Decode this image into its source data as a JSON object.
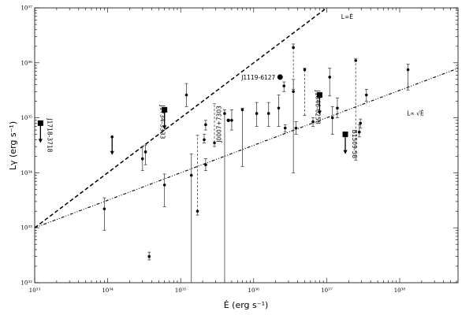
{
  "chart_data": {
    "type": "scatter",
    "title": "",
    "xlabel": "Ė (erg s⁻¹)",
    "ylabel": "Lγ (erg s⁻¹)",
    "x_scale": "log",
    "y_scale": "log",
    "xlim": [
      1e+33,
      6.3e+38
    ],
    "ylim": [
      1e+32,
      1e+37
    ],
    "x_ticks": [
      {
        "value": 1e+33,
        "label": "10³³"
      },
      {
        "value": 1e+34,
        "label": "10³⁴"
      },
      {
        "value": 1e+35,
        "label": "10³⁵"
      },
      {
        "value": 1e+36,
        "label": "10³⁶"
      },
      {
        "value": 1e+37,
        "label": "10³⁷"
      },
      {
        "value": 1e+38,
        "label": "10³⁸"
      }
    ],
    "y_ticks": [
      {
        "value": 1e+32,
        "label": "10³²"
      },
      {
        "value": 1e+33,
        "label": "10³³"
      },
      {
        "value": 1e+34,
        "label": "10³⁴"
      },
      {
        "value": 1e+35,
        "label": "10³⁵"
      },
      {
        "value": 1e+36,
        "label": "10³⁶"
      },
      {
        "value": 1e+37,
        "label": "10³⁷"
      }
    ],
    "grid": false,
    "reference_lines": [
      {
        "label": "L=Ė",
        "style": "dashed",
        "relation": "L = Ė",
        "label_at": [
          1.58e+37,
          6.3e+36
        ]
      },
      {
        "label": "L∝ √Ė",
        "style": "dash-dot",
        "relation": "L = 1e33 × (Ė/1e33)^0.5",
        "label_at": [
          1.26e+38,
          1.1e+35
        ]
      }
    ],
    "points": [
      {
        "x": 1.3e+38,
        "y": 7.5e+35,
        "lo": 3.2e+35,
        "hi": 9.5e+35
      },
      {
        "x": 3.5e+37,
        "y": 2.6e+35,
        "lo": 2e+35,
        "hi": 3.3e+35
      },
      {
        "x": 2.5e+37,
        "y": 1.1e+36,
        "lo": 1.7e+34,
        "hi": 1.2e+36,
        "dashed": true
      },
      {
        "x": 2.8e+37,
        "y": 5.5e+34,
        "lo": 4.5e+34,
        "hi": 7.5e+34
      },
      {
        "x": 2.9e+37,
        "y": 8e+34,
        "lo": 6.5e+34,
        "hi": 9.5e+34
      },
      {
        "x": 1.4e+37,
        "y": 1.5e+35,
        "lo": 1e+35,
        "hi": 2.3e+35
      },
      {
        "x": 1.1e+37,
        "y": 5.5e+35,
        "lo": 2.5e+35,
        "hi": 8e+35
      },
      {
        "x": 1.2e+37,
        "y": 1e+35,
        "lo": 5e+34,
        "hi": 1.6e+35
      },
      {
        "x": 6.5e+36,
        "y": 8.5e+34,
        "lo": 7e+34,
        "hi": 1e+35
      },
      {
        "x": 5e+36,
        "y": 7.5e+35,
        "lo": 1.1e+35,
        "hi": 8e+35,
        "dashed": true
      },
      {
        "x": 3.5e+36,
        "y": 1.9e+36,
        "lo": 3.3e+35,
        "hi": 2.2e+36,
        "dashed": true
      },
      {
        "x": 3.5e+36,
        "y": 3e+35,
        "lo": 1e+34,
        "hi": 5e+35
      },
      {
        "x": 3.8e+36,
        "y": 6.5e+34,
        "lo": 5e+34,
        "hi": 8.5e+34
      },
      {
        "x": 2.6e+36,
        "y": 3.8e+35,
        "lo": 3e+35,
        "hi": 4.5e+35
      },
      {
        "x": 2.7e+36,
        "y": 6.5e+34,
        "lo": 5.5e+34,
        "hi": 7.5e+34
      },
      {
        "x": 2.2e+36,
        "y": 1.5e+35,
        "lo": 7e+34,
        "hi": 2.6e+35
      },
      {
        "x": 1.6e+36,
        "y": 1.2e+35,
        "lo": 7e+34,
        "hi": 1.9e+35
      },
      {
        "x": 1.1e+36,
        "y": 1.2e+35,
        "lo": 7e+34,
        "hi": 1.9e+35
      },
      {
        "x": 7e+35,
        "y": 1.4e+35,
        "lo": 1.3e+34,
        "hi": 1.5e+35
      },
      {
        "x": 5e+35,
        "y": 9e+34,
        "lo": 6e+34,
        "hi": 1.4e+35
      },
      {
        "x": 4e+35,
        "y": 1.2e+35,
        "lo": 1e+32,
        "hi": 1.4e+35
      },
      {
        "x": 2.9e+35,
        "y": 3.5e+34,
        "lo": 3e+34,
        "hi": 1.8e+35,
        "dashed": true
      },
      {
        "x": 2.2e+35,
        "y": 7.5e+34,
        "lo": 6e+34,
        "hi": 9e+34
      },
      {
        "x": 2.1e+35,
        "y": 4e+34,
        "lo": 3.5e+34,
        "hi": 5e+34
      },
      {
        "x": 2.2e+35,
        "y": 1.4e+34,
        "lo": 1.1e+34,
        "hi": 1.8e+34
      },
      {
        "x": 1.7e+35,
        "y": 2e+33,
        "lo": 1.7e+33,
        "hi": 4.8e+34,
        "dashed": true
      },
      {
        "x": 1.4e+35,
        "y": 9e+33,
        "lo": 1e+32,
        "hi": 2.2e+34
      },
      {
        "x": 1.2e+35,
        "y": 2.6e+35,
        "lo": 1.6e+35,
        "hi": 4.2e+35
      },
      {
        "x": 6e+34,
        "y": 6e+33,
        "lo": 2.4e+33,
        "hi": 9.5e+33
      },
      {
        "x": 3e+34,
        "y": 1.8e+34,
        "lo": 1.1e+34,
        "hi": 3e+34
      },
      {
        "x": 3.3e+34,
        "y": 2.4e+34,
        "lo": 1.4e+34,
        "hi": 3.2e+34
      },
      {
        "x": 3.7e+34,
        "y": 3e+32,
        "lo": 2.6e+32,
        "hi": 3.6e+32
      },
      {
        "x": 9e+33,
        "y": 2.2e+33,
        "lo": 9e+32,
        "hi": 3.5e+33
      }
    ],
    "upper_limits": [
      {
        "x": 1.15e+34,
        "y": 4.5e+34,
        "label": ""
      },
      {
        "x": 1.2e+33,
        "y": 8e+34,
        "label": "J1718-3718",
        "label_side": "right"
      },
      {
        "x": 6e+34,
        "y": 1.4e+35,
        "label": "J1734-3333",
        "label_side": "left"
      },
      {
        "x": 8e+36,
        "y": 2.6e+35,
        "label": "J1846-0258",
        "label_side": "left"
      },
      {
        "x": 1.8e+37,
        "y": 5e+34,
        "label": "B1509-58",
        "label_side": "right"
      }
    ],
    "labeled_points": [
      {
        "x": 2.3e+36,
        "y": 5.5e+35,
        "label": "J1119-6127",
        "label_side": "left"
      },
      {
        "x": 4.5e+35,
        "y": 9e+34,
        "label": "J0007+7303",
        "label_side": "left"
      }
    ]
  }
}
